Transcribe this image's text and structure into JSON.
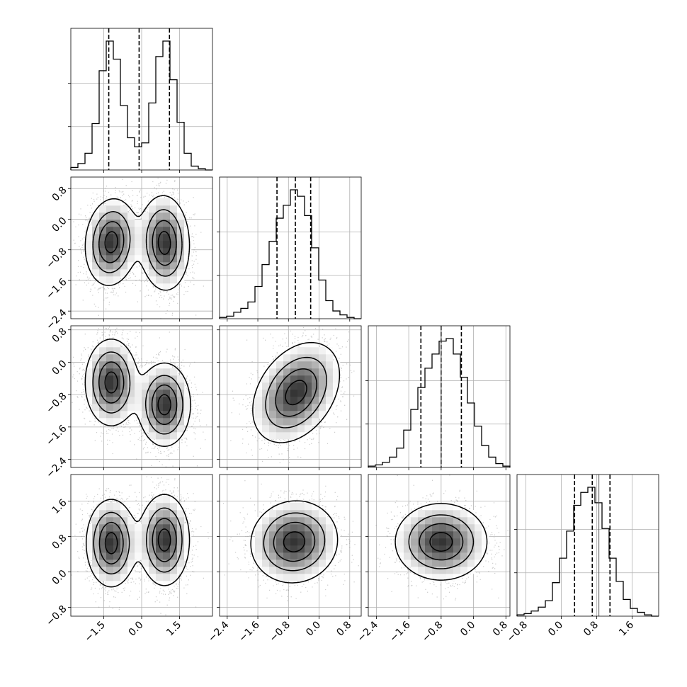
{
  "chart_data": {
    "type": "corner",
    "parameters": [
      {
        "range": [
          -2.8,
          2.8
        ],
        "ticks": [
          -1.5,
          0.0,
          1.5
        ],
        "tick_labels": [
          "−1.5",
          "0.0",
          "1.5"
        ],
        "hist_quantiles": [
          -1.3,
          -0.1,
          1.1
        ],
        "hist_truth": null,
        "hist": {
          "edges": [
            -2.8,
            -2.52,
            -2.24,
            -1.96,
            -1.68,
            -1.4,
            -1.12,
            -0.84,
            -0.56,
            -0.28,
            0.0,
            0.28,
            0.56,
            0.84,
            1.12,
            1.4,
            1.68,
            1.96,
            2.24,
            2.52,
            2.8
          ],
          "counts": [
            0.02,
            0.05,
            0.13,
            0.36,
            0.77,
            1.0,
            0.86,
            0.5,
            0.25,
            0.18,
            0.21,
            0.52,
            0.88,
            1.0,
            0.7,
            0.37,
            0.13,
            0.03,
            0.01,
            0.0
          ]
        },
        "density_centers": [
          {
            "x": -1.2,
            "w": 0.5
          },
          {
            "x": 0.9,
            "w": 0.5
          }
        ]
      },
      {
        "range": [
          -2.6,
          1.1
        ],
        "ticks": [
          -2.4,
          -1.6,
          -0.8,
          0.0,
          0.8
        ],
        "tick_labels": [
          "−2.4",
          "−1.6",
          "−0.8",
          "0.0",
          "0.8"
        ],
        "hist_quantiles": [
          -1.1,
          -0.62,
          -0.22
        ],
        "hist_truth": null,
        "hist": {
          "edges": [
            -2.6,
            -2.415,
            -2.23,
            -2.045,
            -1.86,
            -1.675,
            -1.49,
            -1.305,
            -1.12,
            -0.935,
            -0.75,
            -0.565,
            -0.38,
            -0.195,
            -0.01,
            0.175,
            0.36,
            0.545,
            0.73,
            0.915,
            1.1
          ],
          "counts": [
            0.01,
            0.02,
            0.05,
            0.08,
            0.13,
            0.25,
            0.42,
            0.6,
            0.78,
            0.88,
            1.0,
            0.95,
            0.8,
            0.55,
            0.3,
            0.14,
            0.06,
            0.03,
            0.01,
            0.0
          ]
        }
      },
      {
        "range": [
          -2.6,
          0.9
        ],
        "ticks": [
          -2.4,
          -1.6,
          -0.8,
          0.0,
          0.8
        ],
        "tick_labels": [
          "−2.4",
          "−1.6",
          "−0.8",
          "0.0",
          "0.8"
        ],
        "hist_quantiles": [
          -1.3,
          -0.8,
          -0.3
        ],
        "hist_truth": -0.8,
        "hist": {
          "edges": [
            -2.6,
            -2.425,
            -2.25,
            -2.075,
            -1.9,
            -1.725,
            -1.55,
            -1.375,
            -1.2,
            -1.025,
            -0.85,
            -0.675,
            -0.5,
            -0.325,
            -0.15,
            0.025,
            0.2,
            0.375,
            0.55,
            0.725,
            0.9
          ],
          "counts": [
            0.01,
            0.02,
            0.04,
            0.08,
            0.15,
            0.29,
            0.45,
            0.62,
            0.77,
            0.88,
            0.98,
            1.0,
            0.88,
            0.7,
            0.5,
            0.32,
            0.17,
            0.08,
            0.03,
            0.01
          ]
        }
      },
      {
        "range": [
          -1.0,
          2.2
        ],
        "ticks": [
          -0.8,
          0.0,
          0.8,
          1.6
        ],
        "tick_labels": [
          "−0.8",
          "0.0",
          "0.8",
          "1.6"
        ],
        "hist_quantiles": [
          0.3,
          0.7,
          1.1
        ],
        "hist_truth": 0.85,
        "hist": {
          "edges": [
            -1.0,
            -0.84,
            -0.68,
            -0.52,
            -0.36,
            -0.2,
            -0.04,
            0.12,
            0.28,
            0.44,
            0.6,
            0.76,
            0.92,
            1.08,
            1.24,
            1.4,
            1.56,
            1.72,
            1.88,
            2.04,
            2.2
          ],
          "counts": [
            0.01,
            0.02,
            0.04,
            0.07,
            0.12,
            0.26,
            0.45,
            0.66,
            0.86,
            0.96,
            1.0,
            0.88,
            0.68,
            0.45,
            0.27,
            0.13,
            0.06,
            0.03,
            0.01,
            0.0
          ]
        }
      }
    ],
    "pairs": [
      {
        "row": 1,
        "col": 0,
        "modes": [
          {
            "x": -1.2,
            "y": -0.6,
            "sx": 0.5,
            "sy": 0.55,
            "rho": 0.1
          },
          {
            "x": 0.9,
            "y": -0.62,
            "sx": 0.48,
            "sy": 0.6,
            "rho": -0.05
          }
        ]
      },
      {
        "row": 2,
        "col": 0,
        "modes": [
          {
            "x": -1.2,
            "y": -0.5,
            "sx": 0.5,
            "sy": 0.52,
            "rho": 0.0
          },
          {
            "x": 0.9,
            "y": -1.05,
            "sx": 0.5,
            "sy": 0.5,
            "rho": 0.0
          }
        ]
      },
      {
        "row": 2,
        "col": 1,
        "modes": [
          {
            "x": -0.6,
            "y": -0.75,
            "sx": 0.55,
            "sy": 0.6,
            "rho": 0.35
          }
        ]
      },
      {
        "row": 3,
        "col": 0,
        "modes": [
          {
            "x": -1.2,
            "y": 0.65,
            "sx": 0.48,
            "sy": 0.48,
            "rho": 0.0
          },
          {
            "x": 0.9,
            "y": 0.72,
            "sx": 0.48,
            "sy": 0.5,
            "rho": 0.0
          }
        ]
      },
      {
        "row": 3,
        "col": 1,
        "modes": [
          {
            "x": -0.65,
            "y": 0.68,
            "sx": 0.55,
            "sy": 0.45,
            "rho": 0.05
          }
        ]
      },
      {
        "row": 3,
        "col": 2,
        "modes": [
          {
            "x": -0.8,
            "y": 0.68,
            "sx": 0.55,
            "sy": 0.42,
            "rho": 0.0
          }
        ]
      }
    ],
    "contour_levels": [
      0.12,
      0.35,
      0.62,
      0.88
    ],
    "grid": true,
    "xlabel": "",
    "ylabel": ""
  }
}
